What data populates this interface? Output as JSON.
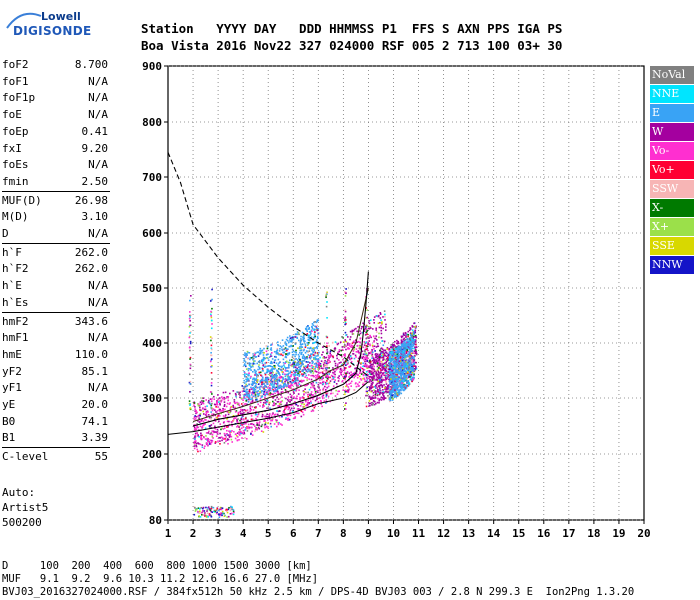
{
  "logo": {
    "brand_top": "Lowell",
    "brand_bottom": "DIGISONDE"
  },
  "header": {
    "line1": "Station   YYYY DAY   DDD HHMMSS P1  FFS S AXN PPS IGA PS",
    "line2": "Boa Vista 2016 Nov22 327 024000 RSF 005 2 713 100 03+ 30"
  },
  "params": [
    {
      "k": "foF2",
      "v": "8.700"
    },
    {
      "k": "foF1",
      "v": "N/A"
    },
    {
      "k": "foF1p",
      "v": "N/A"
    },
    {
      "k": "foE",
      "v": "N/A"
    },
    {
      "k": "foEp",
      "v": "0.41"
    },
    {
      "k": "fxI",
      "v": "9.20"
    },
    {
      "k": "foEs",
      "v": "N/A"
    },
    {
      "k": "fmin",
      "v": "2.50"
    },
    {
      "k": "MUF(D)",
      "v": "26.98"
    },
    {
      "k": "M(D)",
      "v": "3.10"
    },
    {
      "k": "D",
      "v": "N/A"
    },
    {
      "k": "h`F",
      "v": "262.0"
    },
    {
      "k": "h`F2",
      "v": "262.0"
    },
    {
      "k": "h`E",
      "v": "N/A"
    },
    {
      "k": "h`Es",
      "v": "N/A"
    },
    {
      "k": "hmF2",
      "v": "343.6"
    },
    {
      "k": "hmF1",
      "v": "N/A"
    },
    {
      "k": "hmE",
      "v": "110.0"
    },
    {
      "k": "yF2",
      "v": "85.1"
    },
    {
      "k": "yF1",
      "v": "N/A"
    },
    {
      "k": "yE",
      "v": "20.0"
    },
    {
      "k": "B0",
      "v": "74.1"
    },
    {
      "k": "B1",
      "v": "3.39"
    },
    {
      "k": "C-level",
      "v": "55"
    }
  ],
  "auto": {
    "line1": "Auto:",
    "line2": "Artist5",
    "line3": "500200"
  },
  "legend": [
    {
      "label": "NoVal",
      "color": "#808080"
    },
    {
      "label": "NNE",
      "color": "#00e5ff"
    },
    {
      "label": "E",
      "color": "#39a3f5"
    },
    {
      "label": "W",
      "color": "#a4009f"
    },
    {
      "label": "Vo-",
      "color": "#ff2fd0"
    },
    {
      "label": "Vo+",
      "color": "#ff0033"
    },
    {
      "label": "SSW",
      "color": "#f7b5b5"
    },
    {
      "label": "X-",
      "color": "#007a00"
    },
    {
      "label": "X+",
      "color": "#9be04a"
    },
    {
      "label": "SSE",
      "color": "#d8d800"
    },
    {
      "label": "NNW",
      "color": "#1414c8"
    }
  ],
  "footer": {
    "line1": "D     100  200  400  600  800 1000 1500 3000 [km]",
    "line2": "MUF   9.1  9.2  9.6 10.3 11.2 12.6 16.6 27.0 [MHz]",
    "line3": "BVJ03_2016327024000.RSF / 384fx512h 50 kHz 2.5 km / DPS-4D BVJ03 003 / 2.8 N 299.3 E  Ion2Png 1.3.20"
  },
  "chart_data": {
    "type": "scatter",
    "xlim": [
      1,
      20
    ],
    "ylim": [
      80,
      900
    ],
    "x_ticks": [
      1,
      2,
      3,
      4,
      5,
      6,
      7,
      8,
      9,
      10,
      11,
      12,
      13,
      14,
      15,
      16,
      17,
      18,
      19,
      20
    ],
    "y_ticks": [
      80,
      200,
      300,
      400,
      500,
      600,
      700,
      800,
      900
    ],
    "grid": true,
    "legend_position": "right",
    "traces": [
      {
        "freq_start": 2.0,
        "freq_end": 9.7,
        "h_start": 255,
        "h_peak": 420,
        "color": "#a4009f"
      },
      {
        "freq_start": 2.0,
        "freq_end": 9.2,
        "h_start": 250,
        "h_peak": 380,
        "color": "#ff2fd0"
      },
      {
        "freq_start": 4.0,
        "freq_end": 7.0,
        "h_start": 340,
        "h_peak": 400,
        "color": "#39a3f5"
      },
      {
        "freq_start": 9.0,
        "freq_end": 10.9,
        "h_start": 330,
        "h_peak": 400,
        "color": "#a4009f"
      },
      {
        "freq_start": 9.8,
        "freq_end": 10.8,
        "h_start": 340,
        "h_peak": 380,
        "color": "#39a3f5"
      }
    ],
    "profile_solid": [
      [
        2.0,
        250
      ],
      [
        3,
        262
      ],
      [
        4,
        270
      ],
      [
        5,
        278
      ],
      [
        6,
        290
      ],
      [
        7,
        305
      ],
      [
        8,
        325
      ],
      [
        8.5,
        345
      ],
      [
        8.7,
        380
      ],
      [
        8.8,
        420
      ],
      [
        8.9,
        470
      ],
      [
        9.0,
        530
      ]
    ],
    "profile_dashed": [
      [
        1.0,
        745
      ],
      [
        1.5,
        690
      ],
      [
        2.0,
        615
      ],
      [
        3,
        555
      ],
      [
        4,
        505
      ],
      [
        5,
        465
      ],
      [
        6,
        430
      ],
      [
        7,
        400
      ],
      [
        8,
        375
      ],
      [
        8.7,
        350
      ],
      [
        9.0,
        340
      ]
    ],
    "lower_curve": [
      [
        1.0,
        235
      ],
      [
        2,
        240
      ],
      [
        3,
        248
      ],
      [
        4,
        256
      ],
      [
        5,
        264
      ],
      [
        6,
        274
      ],
      [
        7,
        290
      ],
      [
        8,
        300
      ],
      [
        8.5,
        310
      ],
      [
        9.0,
        330
      ]
    ],
    "echo_trace": [
      [
        2,
        258
      ],
      [
        3,
        272
      ],
      [
        4,
        285
      ],
      [
        5,
        300
      ],
      [
        6,
        315
      ],
      [
        7,
        335
      ],
      [
        7.5,
        350
      ],
      [
        8,
        360
      ],
      [
        8.5,
        400
      ],
      [
        8.8,
        460
      ],
      [
        9.0,
        500
      ]
    ]
  }
}
